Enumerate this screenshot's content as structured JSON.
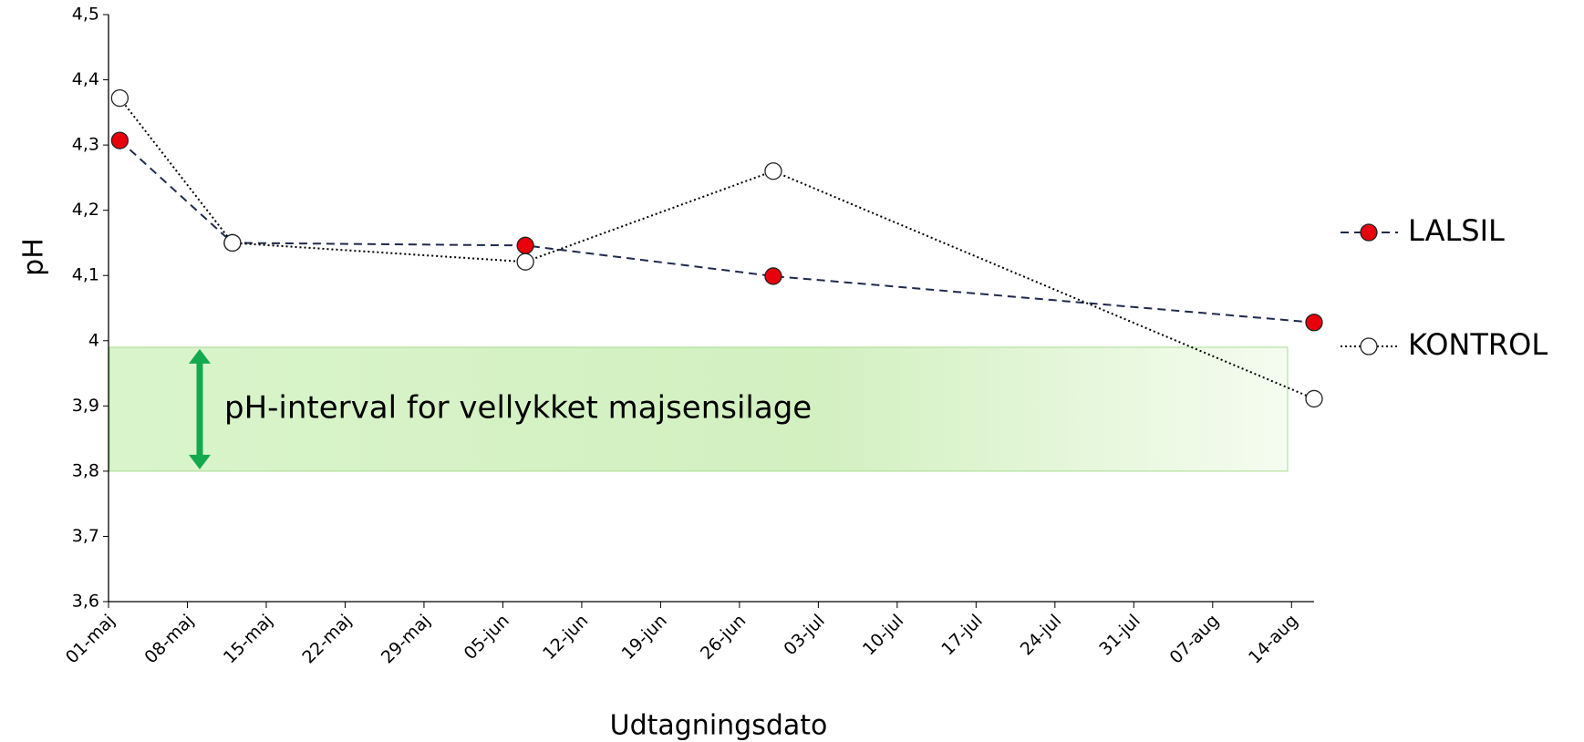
{
  "chart_data": {
    "type": "line",
    "x_label": "Udtagningsdato",
    "y_label": "pH",
    "xlim": [
      0,
      107
    ],
    "ylim": [
      3.6,
      4.5
    ],
    "xticks": [
      {
        "value": 0,
        "label": "01-maj"
      },
      {
        "value": 7,
        "label": "08-maj"
      },
      {
        "value": 14,
        "label": "15-maj"
      },
      {
        "value": 21,
        "label": "22-maj"
      },
      {
        "value": 28,
        "label": "29-maj"
      },
      {
        "value": 35,
        "label": "05-jun"
      },
      {
        "value": 42,
        "label": "12-jun"
      },
      {
        "value": 49,
        "label": "19-jun"
      },
      {
        "value": 56,
        "label": "26-jun"
      },
      {
        "value": 63,
        "label": "03-jul"
      },
      {
        "value": 70,
        "label": "10-jul"
      },
      {
        "value": 77,
        "label": "17-jul"
      },
      {
        "value": 84,
        "label": "24-jul"
      },
      {
        "value": 91,
        "label": "31-jul"
      },
      {
        "value": 98,
        "label": "07-aug"
      },
      {
        "value": 105,
        "label": "14-aug"
      }
    ],
    "yticks": [
      {
        "value": 3.6,
        "label": "3,6"
      },
      {
        "value": 3.7,
        "label": "3,7"
      },
      {
        "value": 3.8,
        "label": "3,8"
      },
      {
        "value": 3.9,
        "label": "3,9"
      },
      4,
      {
        "value": 4.1,
        "label": "4,1"
      },
      {
        "value": 4.2,
        "label": "4,2"
      },
      {
        "value": 4.3,
        "label": "4,3"
      },
      {
        "value": 4.4,
        "label": "4,4"
      },
      {
        "value": 4.5,
        "label": "4,5"
      }
    ],
    "x": [
      1,
      11,
      37,
      59,
      107
    ],
    "series": [
      {
        "name": "LALSIL",
        "color": "#e8000b",
        "line_color": "#1f2a4d",
        "line_style": "dashed",
        "values": [
          4.307,
          4.15,
          4.146,
          4.099,
          4.028
        ]
      },
      {
        "name": "KONTROL",
        "color": "#ffffff",
        "line_color": "#000000",
        "line_style": "dotted",
        "values": [
          4.372,
          4.15,
          4.121,
          4.26,
          3.911
        ]
      }
    ],
    "annotations": [
      {
        "text": "pH-interval for vellykket majsensilage",
        "y": [
          3.8,
          3.99
        ],
        "color": "#d4f2c4"
      }
    ],
    "legend": "right"
  }
}
